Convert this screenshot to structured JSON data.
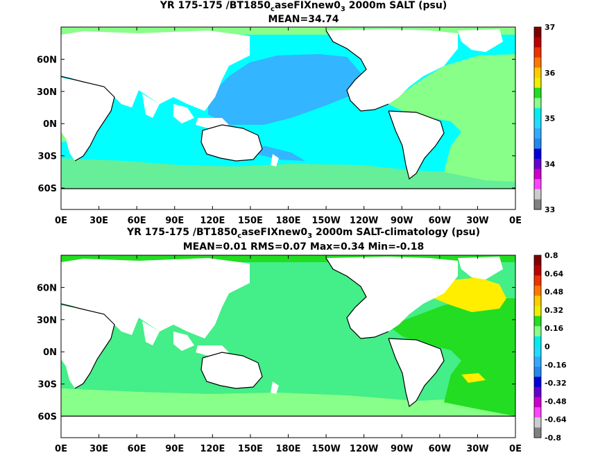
{
  "panels": [
    {
      "title_pre": "YR 175-175 /BT1850",
      "title_sub": "c",
      "title_mid": "aseFIXnew0",
      "title_sub2": "3",
      "title_post": " 2000m SALT (psu)",
      "stats": "MEAN=34.74",
      "colorbar_labels": [
        "37",
        "36",
        "35",
        "34",
        "33"
      ],
      "colorbar_colors": [
        "#7f0000",
        "#bb0000",
        "#ee3300",
        "#ff7700",
        "#ffcc00",
        "#eeee00",
        "#22dd22",
        "#88ff88",
        "#00eeee",
        "#22ddff",
        "#33aaff",
        "#2288ee",
        "#0000dd",
        "#6600cc",
        "#cc00cc",
        "#ff44ff",
        "#cccccc",
        "#808080"
      ],
      "colors": {
        "ocean_main": "#00ffff",
        "ocean_pacific_north": "#33b5ff",
        "atlantic": "#88ff88",
        "southern": "#66ee99",
        "land": "#ffffff"
      }
    },
    {
      "title_pre": "YR 175-175 /BT1850",
      "title_sub": "c",
      "title_mid": "aseFIXnew0",
      "title_sub2": "3",
      "title_post": " 2000m SALT-climatology (psu)",
      "stats": "MEAN=0.01   RMS=0.07   Max=0.34   Min=-0.18",
      "colorbar_labels": [
        "0.8",
        "0.64",
        "0.48",
        "0.32",
        "0.16",
        "0",
        "-0.16",
        "-0.32",
        "-0.48",
        "-0.64",
        "-0.8"
      ],
      "colorbar_colors": [
        "#7f0000",
        "#bb0000",
        "#ee3300",
        "#ff7700",
        "#ffcc00",
        "#eeee00",
        "#22dd22",
        "#88ff88",
        "#00eeee",
        "#22ddff",
        "#33aaff",
        "#2288ee",
        "#0000dd",
        "#6600cc",
        "#cc00cc",
        "#ff44ff",
        "#cccccc",
        "#808080"
      ],
      "colors": {
        "ocean_main": "#44ee88",
        "north_atlantic": "#ffee00",
        "atlantic": "#22dd22",
        "southern": "#88ff88",
        "land": "#ffffff"
      }
    }
  ],
  "x_ticks": [
    "0E",
    "30E",
    "60E",
    "90E",
    "120E",
    "150E",
    "180E",
    "150W",
    "120W",
    "90W",
    "60W",
    "30W",
    "0E"
  ],
  "y_ticks": [
    "60N",
    "30N",
    "0N",
    "30S",
    "60S"
  ]
}
